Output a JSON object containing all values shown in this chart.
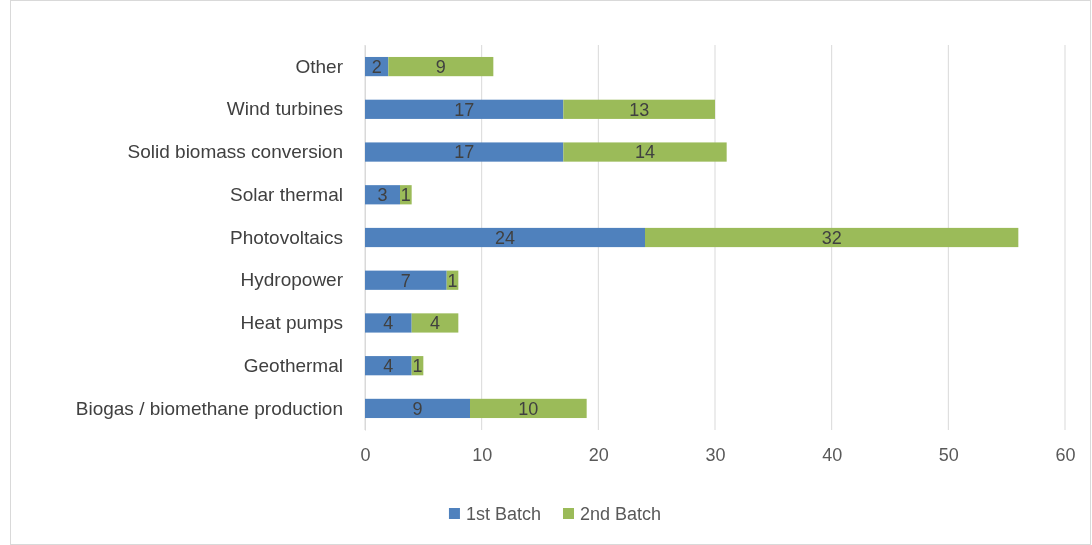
{
  "chart_data": {
    "type": "bar",
    "orientation": "horizontal",
    "stacked": true,
    "categories": [
      "Other",
      "Wind turbines",
      "Solid biomass conversion",
      "Solar thermal",
      "Photovoltaics",
      "Hydropower",
      "Heat pumps",
      "Geothermal",
      "Biogas / biomethane production"
    ],
    "series": [
      {
        "name": "1st Batch",
        "color": "#4f81bd",
        "values": [
          2,
          17,
          17,
          3,
          24,
          7,
          4,
          4,
          9
        ]
      },
      {
        "name": "2nd Batch",
        "color": "#9bbb59",
        "values": [
          9,
          13,
          14,
          1,
          32,
          1,
          4,
          1,
          10
        ]
      }
    ],
    "xlim": [
      0,
      60
    ],
    "xticks": [
      0,
      10,
      20,
      30,
      40,
      50,
      60
    ],
    "grid": "x",
    "legend": "bottom",
    "data_labels": true
  }
}
